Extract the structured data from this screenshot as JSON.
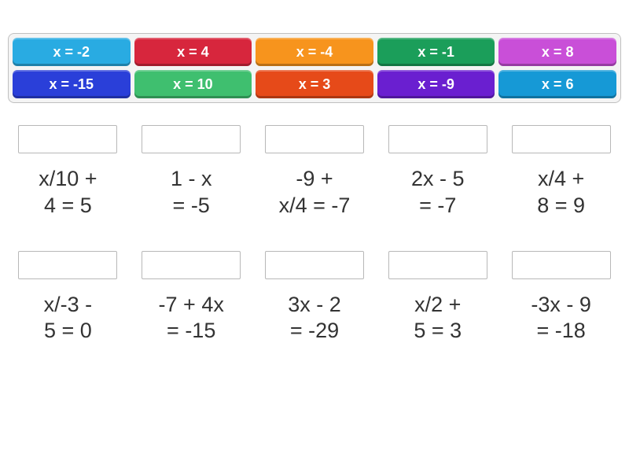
{
  "palette": {
    "panel_bg": "#f4f4f4",
    "panel_border": "#c0c0c0",
    "slot_border": "#b8b8b8",
    "text_color": "#333333",
    "background": "#ffffff"
  },
  "answers_panel": {
    "columns": 5,
    "rows": 2,
    "tile_font_size": 18,
    "tile_font_weight": 700,
    "tile_text_color": "#ffffff",
    "tiles": [
      {
        "label": "x = -2",
        "color": "#29abe2"
      },
      {
        "label": "x = 4",
        "color": "#d7263d"
      },
      {
        "label": "x = -4",
        "color": "#f7941d"
      },
      {
        "label": "x = -1",
        "color": "#1b9e5a"
      },
      {
        "label": "x = 8",
        "color": "#c94fd8"
      },
      {
        "label": "x = -15",
        "color": "#2a3fd9"
      },
      {
        "label": "x = 10",
        "color": "#3fbf6f"
      },
      {
        "label": "x = 3",
        "color": "#e64a19"
      },
      {
        "label": "x = -9",
        "color": "#6a1fd0"
      },
      {
        "label": "x = 6",
        "color": "#1699d6"
      }
    ]
  },
  "questions": {
    "columns": 5,
    "expr_font_size": 27,
    "items": [
      {
        "expression": "x/10 +\n4 = 5"
      },
      {
        "expression": "1 - x\n= -5"
      },
      {
        "expression": "-9 +\nx/4 = -7"
      },
      {
        "expression": "2x - 5\n= -7"
      },
      {
        "expression": "x/4 +\n8 = 9"
      },
      {
        "expression": "x/-3 -\n5 = 0"
      },
      {
        "expression": "-7 + 4x\n= -15"
      },
      {
        "expression": "3x - 2\n= -29"
      },
      {
        "expression": "x/2 +\n5 = 3"
      },
      {
        "expression": "-3x - 9\n= -18"
      }
    ]
  }
}
